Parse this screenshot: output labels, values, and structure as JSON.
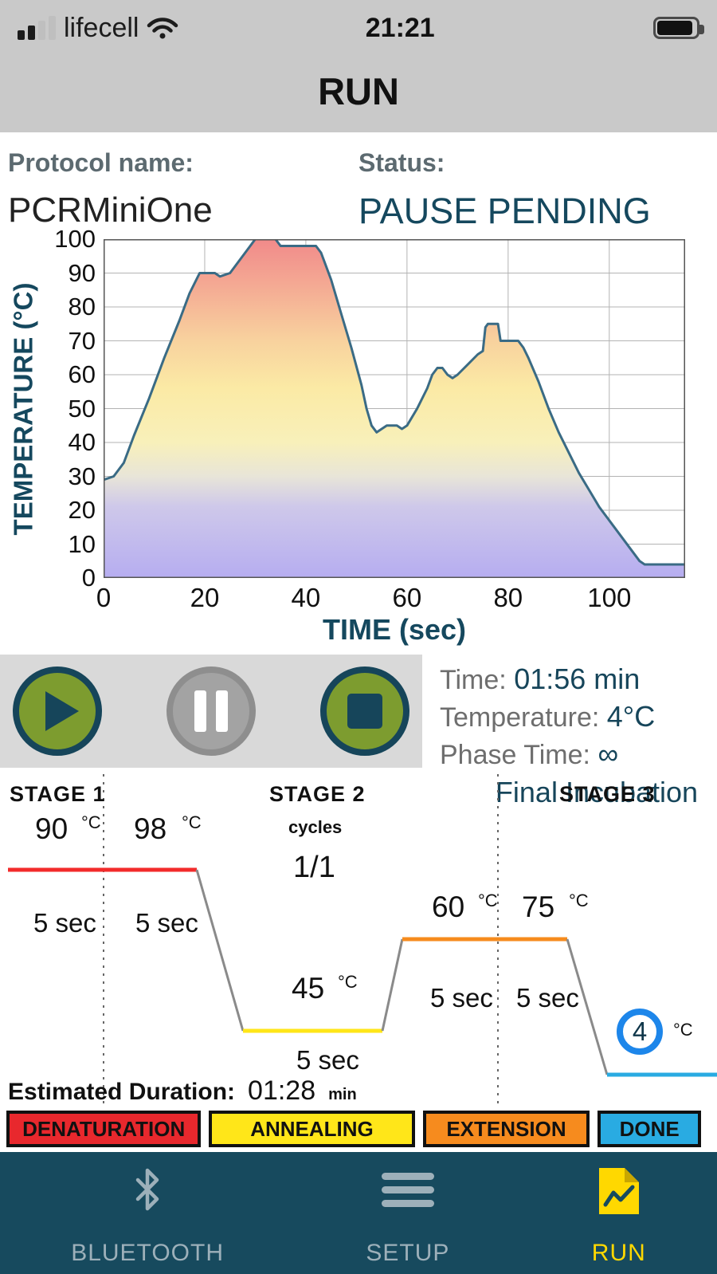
{
  "colors": {
    "navy": "#16455a",
    "header_bg": "#c9c9c9",
    "panel_bg": "#d9d9d9",
    "button_green": "#7d9c2f",
    "nav_bg": "#174a5e",
    "nav_active": "#ffd800",
    "final_circle_blue": "#1d86ea"
  },
  "status_bar": {
    "carrier": "lifecell",
    "time": "21:21"
  },
  "header": {
    "title": "RUN"
  },
  "protocol": {
    "name_label": "Protocol name:",
    "name": "PCRMiniOne",
    "status_label": "Status:",
    "status": "PAUSE PENDING"
  },
  "chart_data": {
    "type": "area",
    "title": "",
    "xlabel": "TIME (sec)",
    "ylabel": "TEMPERATURE (°C)",
    "xlim": [
      0,
      115
    ],
    "ylim": [
      0,
      100
    ],
    "x_ticks": [
      0,
      20,
      40,
      60,
      80,
      100
    ],
    "y_ticks": [
      0,
      10,
      20,
      30,
      40,
      50,
      60,
      70,
      80,
      90,
      100
    ],
    "grid": true,
    "legend": false,
    "line_color": "#3a6b85",
    "points": [
      [
        0,
        29
      ],
      [
        2,
        30
      ],
      [
        4,
        34
      ],
      [
        6,
        42
      ],
      [
        9,
        53
      ],
      [
        12,
        65
      ],
      [
        15,
        76
      ],
      [
        17,
        84
      ],
      [
        19,
        90
      ],
      [
        22,
        90
      ],
      [
        23,
        89
      ],
      [
        25,
        90
      ],
      [
        27,
        94
      ],
      [
        29,
        98
      ],
      [
        30,
        100
      ],
      [
        34,
        100
      ],
      [
        35,
        98
      ],
      [
        42,
        98
      ],
      [
        43,
        96
      ],
      [
        45,
        88
      ],
      [
        47,
        78
      ],
      [
        49,
        68
      ],
      [
        51,
        57
      ],
      [
        52,
        50
      ],
      [
        53,
        45
      ],
      [
        54,
        43
      ],
      [
        55,
        44
      ],
      [
        56,
        45
      ],
      [
        58,
        45
      ],
      [
        59,
        44
      ],
      [
        60,
        45
      ],
      [
        62,
        50
      ],
      [
        64,
        56
      ],
      [
        65,
        60
      ],
      [
        66,
        62
      ],
      [
        67,
        62
      ],
      [
        68,
        60
      ],
      [
        69,
        59
      ],
      [
        70,
        60
      ],
      [
        72,
        63
      ],
      [
        74,
        66
      ],
      [
        75,
        67
      ],
      [
        75.5,
        74
      ],
      [
        76,
        75
      ],
      [
        78,
        75
      ],
      [
        78.5,
        70
      ],
      [
        82,
        70
      ],
      [
        83,
        68
      ],
      [
        84,
        65
      ],
      [
        86,
        58
      ],
      [
        88,
        50
      ],
      [
        90,
        43
      ],
      [
        92,
        37
      ],
      [
        94,
        31
      ],
      [
        96,
        26
      ],
      [
        98,
        21
      ],
      [
        100,
        17
      ],
      [
        102,
        13
      ],
      [
        104,
        9
      ],
      [
        106,
        5
      ],
      [
        107,
        4
      ],
      [
        115,
        4
      ]
    ]
  },
  "run_info": {
    "time_label": "Time:",
    "time_value": "01:56 min",
    "temperature_label": "Temperature:",
    "temperature_value": "4°C",
    "phase_time_label": "Phase Time:",
    "phase_time_value": "∞",
    "phase_name": "Final Incubation"
  },
  "stages": {
    "stage1": {
      "label": "STAGE 1",
      "steps": [
        {
          "temp": "90",
          "unit": "°C",
          "duration": "5 sec"
        },
        {
          "temp": "98",
          "unit": "°C",
          "duration": "5 sec"
        }
      ]
    },
    "stage2": {
      "label": "STAGE 2",
      "cycles_label": "cycles",
      "cycles": "1/1",
      "steps": [
        {
          "temp": "45",
          "unit": "°C",
          "duration": "5 sec"
        },
        {
          "temp": "60",
          "unit": "°C",
          "duration": "5 sec"
        },
        {
          "temp": "75",
          "unit": "°C",
          "duration": "5 sec"
        }
      ]
    },
    "stage3": {
      "label": "STAGE 3",
      "final_temp": "4",
      "unit": "°C"
    }
  },
  "estimated_duration": {
    "label": "Estimated Duration:",
    "value": "01:28",
    "unit": "min"
  },
  "phase_buttons": [
    {
      "label": "DENATURATION",
      "color": "#e8282d"
    },
    {
      "label": "ANNEALING",
      "color": "#ffe619"
    },
    {
      "label": "EXTENSION",
      "color": "#f68b1e"
    },
    {
      "label": "DONE",
      "color": "#29abe2"
    }
  ],
  "bottom_nav": [
    {
      "label": "BLUETOOTH",
      "icon": "bluetooth-icon",
      "active": false
    },
    {
      "label": "SETUP",
      "icon": "menu-icon",
      "active": false
    },
    {
      "label": "RUN",
      "icon": "run-document-icon",
      "active": true
    }
  ]
}
